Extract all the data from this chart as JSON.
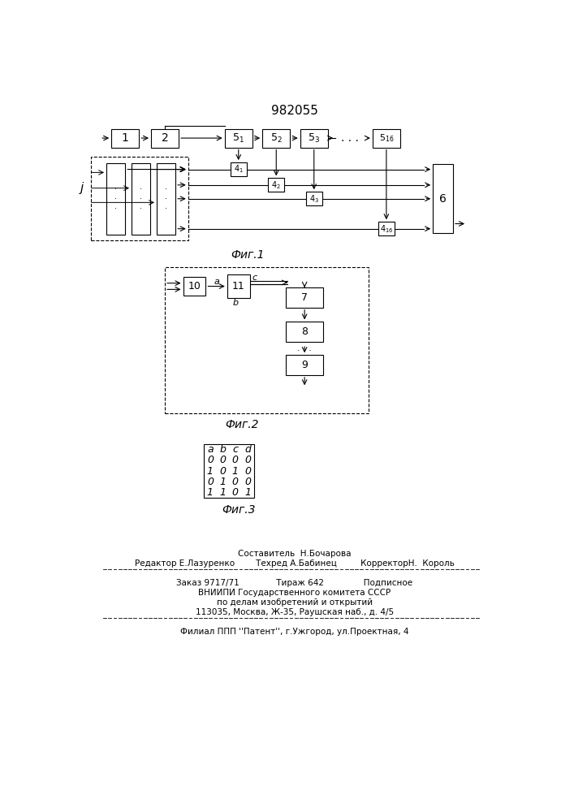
{
  "title": "982055",
  "table_headers": [
    "a",
    "b",
    "c",
    "d"
  ],
  "table_data": [
    [
      "0",
      "0",
      "0",
      "0"
    ],
    [
      "1",
      "0",
      "1",
      "0"
    ],
    [
      "0",
      "1",
      "0",
      "0"
    ],
    [
      "1",
      "1",
      "0",
      "1"
    ]
  ]
}
